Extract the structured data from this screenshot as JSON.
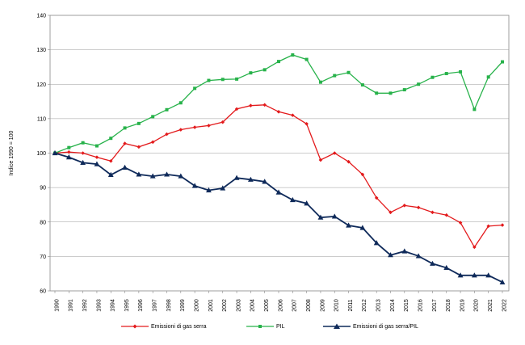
{
  "chart_data": {
    "type": "line",
    "ylabel": "Indice 1990 = 100",
    "xlabel": "",
    "ylim": [
      60,
      140
    ],
    "yticks": [
      60,
      70,
      80,
      90,
      100,
      110,
      120,
      130,
      140
    ],
    "grid": true,
    "legend_position": "bottom",
    "categories": [
      "1990",
      "1991",
      "1992",
      "1993",
      "1994",
      "1995",
      "1996",
      "1997",
      "1998",
      "1999",
      "2000",
      "2001",
      "2002",
      "2003",
      "2004",
      "2005",
      "2006",
      "2007",
      "2008",
      "2009",
      "2010",
      "2011",
      "2012",
      "2013",
      "2014",
      "2015",
      "2016",
      "2017",
      "2018",
      "2019",
      "2020",
      "2021",
      "2022"
    ],
    "series": [
      {
        "name": "Emissioni di gas serra",
        "color": "#e31a1c",
        "marker": "diamond",
        "values": [
          100,
          100.3,
          100.0,
          98.8,
          97.7,
          102.8,
          101.8,
          103.2,
          105.5,
          106.8,
          107.5,
          108.0,
          109.0,
          112.8,
          113.8,
          114.0,
          112.0,
          111.0,
          108.5,
          98.0,
          100.0,
          97.5,
          93.8,
          87.0,
          82.8,
          84.8,
          84.2,
          82.8,
          82.0,
          79.8,
          72.7,
          78.8,
          79.1
        ]
      },
      {
        "name": "PIL",
        "color": "#27b24a",
        "marker": "square",
        "values": [
          100,
          101.6,
          103.0,
          102.1,
          104.3,
          107.3,
          108.6,
          110.6,
          112.6,
          114.6,
          118.8,
          121.1,
          121.4,
          121.5,
          123.3,
          124.2,
          126.6,
          128.5,
          127.2,
          120.6,
          122.5,
          123.4,
          119.8,
          117.4,
          117.4,
          118.4,
          120.0,
          122.0,
          123.1,
          123.6,
          112.7,
          122.1,
          126.5
        ]
      },
      {
        "name": "Emissioni di gas serra/PIL",
        "color": "#0f2a5a",
        "marker": "triangle",
        "values": [
          100,
          98.8,
          97.2,
          96.8,
          93.7,
          95.8,
          93.8,
          93.3,
          93.8,
          93.3,
          90.5,
          89.2,
          89.8,
          92.8,
          92.3,
          91.7,
          88.6,
          86.4,
          85.4,
          81.3,
          81.6,
          79.0,
          78.3,
          73.9,
          70.4,
          71.5,
          70.1,
          67.9,
          66.7,
          64.5,
          64.5,
          64.5,
          62.5
        ]
      }
    ]
  }
}
